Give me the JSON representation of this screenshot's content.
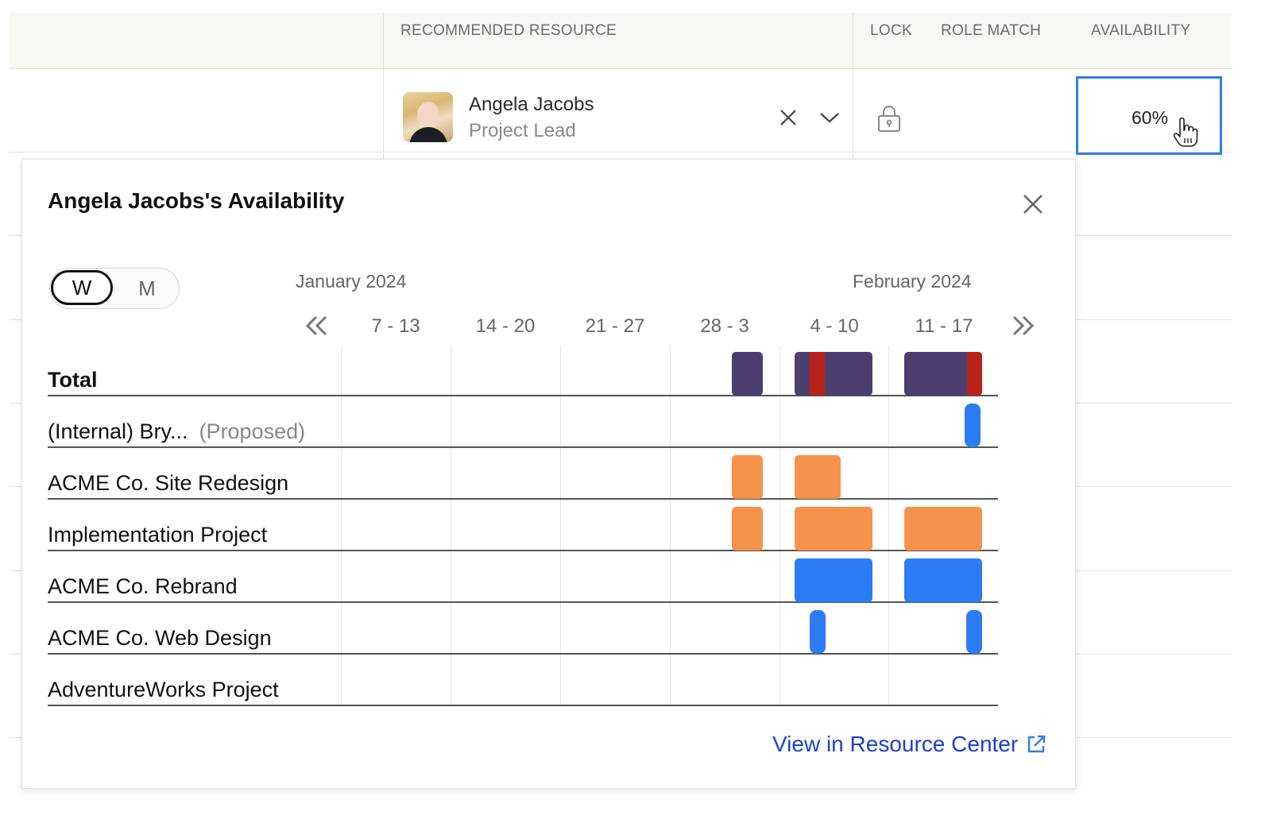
{
  "table": {
    "headers": {
      "resource": "RECOMMENDED RESOURCE",
      "lock": "LOCK",
      "role_match": "ROLE MATCH",
      "availability": "AVAILABILITY"
    },
    "row": {
      "resource_name": "Angela Jacobs",
      "resource_role": "Project Lead",
      "availability": "60%"
    }
  },
  "popup": {
    "title": "Angela Jacobs's Availability",
    "toggle": {
      "week": "W",
      "month": "M",
      "selected": "W"
    },
    "months": [
      "January 2024",
      "February 2024"
    ],
    "weeks": [
      "7 - 13",
      "14 - 20",
      "21 - 27",
      "28 - 3",
      "4 - 10",
      "11 - 17"
    ],
    "rows": [
      {
        "label": "Total",
        "sub": ""
      },
      {
        "label": "(Internal) Bry...",
        "sub": "(Proposed)"
      },
      {
        "label": "ACME Co. Site Redesign",
        "sub": ""
      },
      {
        "label": "Implementation Project",
        "sub": ""
      },
      {
        "label": "ACME Co. Rebrand",
        "sub": ""
      },
      {
        "label": "ACME Co. Web Design",
        "sub": ""
      },
      {
        "label": "AdventureWorks Project",
        "sub": ""
      }
    ],
    "footer_link": "View in Resource Center"
  },
  "colors": {
    "total": "#4a3f6e",
    "over": "#b8231b",
    "orange": "#f7924a",
    "blue": "#2c7cf6",
    "accent": "#2f7bf5",
    "link": "#1a3fd6"
  }
}
